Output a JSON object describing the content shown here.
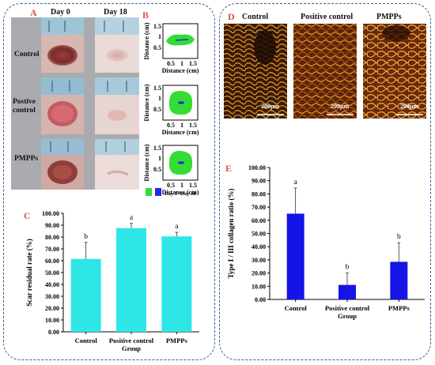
{
  "panels": {
    "A": {
      "letter": "A",
      "day0": "Day 0",
      "day18": "Day 18",
      "rows": [
        "Control",
        "Postive control",
        "PMPPs"
      ]
    },
    "B": {
      "letter": "B",
      "ylabel": "Distance (cm)",
      "xlabel": "Distance (cm)",
      "yticks": [
        "1.5",
        "1",
        "0.5"
      ],
      "xticks": [
        "0.5",
        "1",
        "1.5"
      ],
      "legend": [
        "Day 0",
        "Day 18"
      ],
      "colors": {
        "day0": "#33dd33",
        "day18": "#1f2ee0"
      }
    },
    "D": {
      "letter": "D",
      "titles": [
        "Control",
        "Positive control",
        "PMPPs"
      ],
      "scalebar": "200μm"
    }
  },
  "chart_data": [
    {
      "panel": "C",
      "type": "bar",
      "categories": [
        "Control",
        "Positive control",
        "PMPPs"
      ],
      "values": [
        61.5,
        87.5,
        80.5
      ],
      "errors": [
        14,
        4,
        3.5
      ],
      "letters": [
        "b",
        "a",
        "a"
      ],
      "xlabel": "Group",
      "ylabel": "Scar residual rate (%)",
      "ylim": [
        0,
        100
      ],
      "yticks": [
        "0.00",
        "10.00",
        "20.00",
        "30.00",
        "40.00",
        "50.00",
        "60.00",
        "70.00",
        "80.00",
        "90.00",
        "100.00"
      ],
      "color": "#2ee6e6",
      "grid": false
    },
    {
      "panel": "E",
      "type": "bar",
      "categories": [
        "Control",
        "Positive control",
        "PMPPs"
      ],
      "values": [
        65,
        11,
        28.5
      ],
      "errors": [
        19.5,
        9,
        14.5
      ],
      "letters": [
        "a",
        "b",
        "b"
      ],
      "xlabel": "Group",
      "ylabel": "Type I / III collagen ratio (%)",
      "ylim": [
        0,
        100
      ],
      "yticks": [
        "0.00",
        "10.00",
        "20.00",
        "30.00",
        "40.00",
        "50.00",
        "60.00",
        "70.00",
        "80.00",
        "90.00",
        "100.00"
      ],
      "color": "#1414e6",
      "grid": false
    }
  ]
}
